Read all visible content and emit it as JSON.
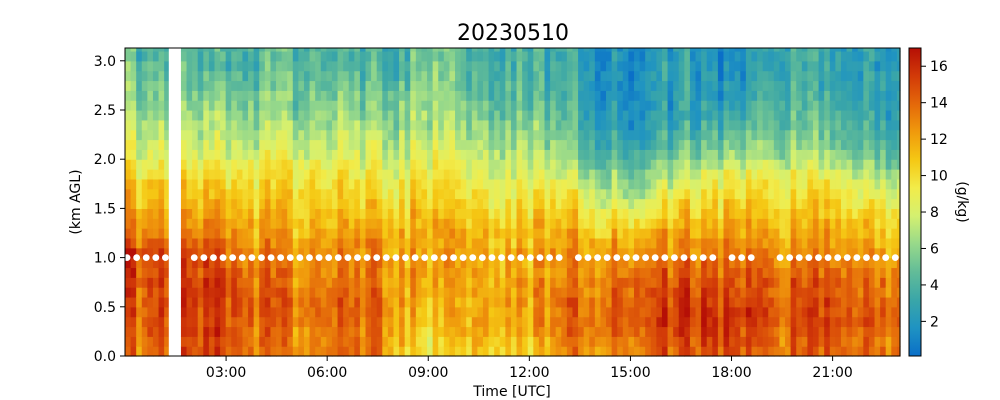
{
  "chart_data": {
    "type": "heatmap",
    "title": "20230510",
    "xlabel": "Time [UTC]",
    "ylabel": "(km AGL)",
    "x_unit": "hours UTC",
    "xlim": [
      0.0,
      23.0
    ],
    "ylim": [
      0.0,
      3.13
    ],
    "x_ticks": [
      {
        "value": 3,
        "label": "03:00"
      },
      {
        "value": 6,
        "label": "06:00"
      },
      {
        "value": 9,
        "label": "09:00"
      },
      {
        "value": 12,
        "label": "12:00"
      },
      {
        "value": 15,
        "label": "15:00"
      },
      {
        "value": 18,
        "label": "18:00"
      },
      {
        "value": 21,
        "label": "21:00"
      }
    ],
    "y_ticks": [
      {
        "value": 0.0,
        "label": "0.0"
      },
      {
        "value": 0.5,
        "label": "0.5"
      },
      {
        "value": 1.0,
        "label": "1.0"
      },
      {
        "value": 1.5,
        "label": "1.5"
      },
      {
        "value": 2.0,
        "label": "2.0"
      },
      {
        "value": 2.5,
        "label": "2.5"
      },
      {
        "value": 3.0,
        "label": "3.0"
      }
    ],
    "colorbar": {
      "label": "(g/kg)",
      "range": [
        0.1,
        17.0
      ],
      "ticks": [
        {
          "value": 2,
          "label": "2"
        },
        {
          "value": 4,
          "label": "4"
        },
        {
          "value": 6,
          "label": "6"
        },
        {
          "value": 8,
          "label": "8"
        },
        {
          "value": 10,
          "label": "10"
        },
        {
          "value": 12,
          "label": "12"
        },
        {
          "value": 14,
          "label": "14"
        },
        {
          "value": 16,
          "label": "16"
        }
      ],
      "colors": [
        "#0a6fc8",
        "#1f93c2",
        "#3aa6a8",
        "#62bc98",
        "#97d98a",
        "#d4f070",
        "#f2ec4a",
        "#f5c814",
        "#f09a0c",
        "#e4680a",
        "#d23a08",
        "#b50f06"
      ]
    },
    "data_gap": {
      "x_start": 1.3,
      "x_end": 1.65,
      "label": ""
    },
    "marker_line": {
      "y": 1.0,
      "style": "white dots",
      "gaps": [
        [
          1.25,
          2.0
        ],
        [
          13.1,
          13.3
        ],
        [
          17.6,
          17.85
        ],
        [
          18.7,
          19.2
        ]
      ]
    },
    "heights_km": [
      0.0,
      0.1,
      0.2,
      0.3,
      0.4,
      0.5,
      0.6,
      0.7,
      0.8,
      0.9,
      1.0,
      1.1,
      1.2,
      1.3,
      1.4,
      1.5,
      1.6,
      1.7,
      1.8,
      1.9,
      2.0,
      2.1,
      2.2,
      2.3,
      2.4,
      2.5,
      2.6,
      2.7,
      2.8,
      2.9,
      3.0,
      3.1
    ],
    "profiles": [
      {
        "t": 0.0,
        "vals": [
          13.5,
          13.5,
          14.0,
          14.0,
          14.5,
          14.5,
          14.5,
          15.0,
          15.0,
          15.0,
          15.5,
          14.0,
          13.0,
          12.5,
          12.0,
          11.5,
          11.0,
          10.5,
          9.5,
          9.0,
          8.5,
          8.0,
          7.5,
          7.0,
          6.5,
          6.0,
          5.5,
          5.5,
          5.0,
          5.0,
          4.5,
          4.5
        ]
      },
      {
        "t": 2.5,
        "vals": [
          14.5,
          14.5,
          15.0,
          15.0,
          15.0,
          15.0,
          15.0,
          15.0,
          14.5,
          14.5,
          14.0,
          13.5,
          13.0,
          12.5,
          12.0,
          11.0,
          10.5,
          10.0,
          9.5,
          8.5,
          8.0,
          7.5,
          7.0,
          6.5,
          6.0,
          5.5,
          5.0,
          4.5,
          4.0,
          3.5,
          3.5,
          3.5
        ]
      },
      {
        "t": 5.0,
        "vals": [
          13.0,
          13.0,
          13.0,
          13.5,
          13.5,
          13.5,
          13.5,
          13.0,
          13.0,
          12.5,
          12.5,
          12.0,
          11.5,
          11.5,
          11.0,
          10.5,
          10.5,
          10.0,
          9.5,
          9.0,
          8.0,
          7.5,
          7.0,
          6.5,
          6.0,
          5.5,
          5.5,
          5.0,
          5.0,
          4.5,
          4.5,
          4.5
        ]
      },
      {
        "t": 7.5,
        "vals": [
          13.5,
          13.5,
          13.5,
          14.0,
          14.0,
          14.0,
          13.5,
          13.5,
          13.0,
          13.0,
          12.5,
          12.5,
          12.0,
          11.5,
          11.0,
          10.5,
          10.0,
          9.5,
          9.0,
          8.5,
          8.0,
          7.5,
          7.0,
          6.5,
          6.0,
          5.5,
          5.0,
          4.5,
          4.0,
          4.0,
          3.5,
          3.5
        ]
      },
      {
        "t": 9.0,
        "vals": [
          9.0,
          9.0,
          9.5,
          10.0,
          10.5,
          10.5,
          11.0,
          11.0,
          11.5,
          11.5,
          11.5,
          11.5,
          11.5,
          11.0,
          11.0,
          10.5,
          10.0,
          9.5,
          9.0,
          8.5,
          8.0,
          7.5,
          7.0,
          6.5,
          6.5,
          6.0,
          6.0,
          5.5,
          5.5,
          5.0,
          5.0,
          5.0
        ]
      },
      {
        "t": 10.5,
        "vals": [
          11.5,
          11.5,
          12.0,
          12.0,
          12.0,
          12.0,
          12.0,
          12.0,
          12.0,
          12.0,
          12.0,
          11.5,
          11.5,
          11.0,
          10.5,
          10.0,
          9.5,
          9.0,
          8.5,
          8.0,
          7.5,
          7.0,
          6.5,
          6.0,
          5.5,
          5.0,
          4.5,
          4.5,
          4.0,
          4.0,
          4.0,
          4.0
        ]
      },
      {
        "t": 12.0,
        "vals": [
          11.0,
          11.0,
          11.5,
          12.0,
          12.0,
          12.5,
          12.5,
          12.5,
          12.0,
          12.0,
          12.0,
          11.5,
          11.5,
          11.0,
          10.5,
          10.0,
          9.5,
          9.0,
          8.5,
          8.0,
          7.5,
          7.0,
          6.5,
          6.0,
          5.5,
          5.0,
          4.5,
          4.5,
          4.0,
          4.0,
          4.0,
          4.0
        ]
      },
      {
        "t": 13.5,
        "vals": [
          13.5,
          13.5,
          14.0,
          14.0,
          14.0,
          14.0,
          13.5,
          13.5,
          13.0,
          13.0,
          12.5,
          12.0,
          11.5,
          11.0,
          10.5,
          9.5,
          9.0,
          8.0,
          7.0,
          6.0,
          5.5,
          5.0,
          4.5,
          4.0,
          3.5,
          3.5,
          3.0,
          3.0,
          3.0,
          3.0,
          3.0,
          3.0
        ]
      },
      {
        "t": 15.0,
        "vals": [
          13.5,
          14.0,
          14.5,
          15.0,
          15.0,
          15.0,
          14.5,
          14.5,
          14.0,
          13.5,
          13.0,
          12.5,
          11.5,
          10.5,
          9.5,
          8.0,
          7.0,
          6.5,
          6.0,
          5.0,
          4.0,
          3.5,
          3.0,
          2.5,
          2.5,
          2.0,
          2.0,
          2.0,
          2.0,
          2.0,
          2.0,
          2.0
        ]
      },
      {
        "t": 16.5,
        "vals": [
          14.5,
          14.5,
          15.0,
          15.5,
          15.5,
          15.0,
          15.0,
          14.5,
          14.0,
          13.5,
          13.0,
          12.5,
          12.0,
          11.0,
          10.5,
          9.5,
          9.0,
          8.0,
          7.0,
          6.0,
          5.0,
          4.0,
          3.5,
          3.0,
          2.5,
          2.5,
          2.5,
          2.5,
          2.5,
          2.5,
          2.5,
          2.5
        ]
      },
      {
        "t": 18.0,
        "vals": [
          15.0,
          15.5,
          15.5,
          16.0,
          16.0,
          15.5,
          15.0,
          15.0,
          14.5,
          14.0,
          13.5,
          13.0,
          12.5,
          12.0,
          11.5,
          11.0,
          10.5,
          10.0,
          9.0,
          8.0,
          7.0,
          6.0,
          5.0,
          4.0,
          3.5,
          3.0,
          2.5,
          2.0,
          2.0,
          1.5,
          1.5,
          1.5
        ]
      },
      {
        "t": 19.5,
        "vals": [
          14.0,
          14.0,
          14.5,
          15.0,
          15.0,
          15.0,
          14.5,
          14.5,
          14.0,
          13.5,
          13.0,
          12.5,
          12.0,
          11.5,
          11.0,
          10.5,
          10.0,
          9.5,
          9.0,
          8.0,
          7.0,
          6.5,
          6.0,
          5.5,
          5.0,
          5.0,
          4.5,
          4.5,
          4.0,
          4.0,
          4.0,
          4.0
        ]
      },
      {
        "t": 21.0,
        "vals": [
          14.5,
          14.5,
          15.0,
          15.0,
          15.0,
          15.0,
          14.5,
          14.5,
          14.0,
          13.5,
          13.0,
          12.5,
          12.0,
          11.5,
          11.0,
          10.5,
          10.0,
          9.5,
          8.5,
          7.5,
          6.5,
          5.5,
          5.0,
          4.5,
          4.0,
          3.5,
          3.5,
          3.0,
          3.0,
          3.0,
          3.0,
          3.0
        ]
      },
      {
        "t": 23.0,
        "vals": [
          13.5,
          13.5,
          14.0,
          14.0,
          14.0,
          14.0,
          13.5,
          13.5,
          13.0,
          12.5,
          12.0,
          11.5,
          11.0,
          10.5,
          10.0,
          9.0,
          8.0,
          7.0,
          6.0,
          5.0,
          4.5,
          4.0,
          3.5,
          3.0,
          3.0,
          2.5,
          2.5,
          2.5,
          2.5,
          2.5,
          2.5,
          2.5
        ]
      }
    ],
    "time_step_hours": 0.166
  }
}
